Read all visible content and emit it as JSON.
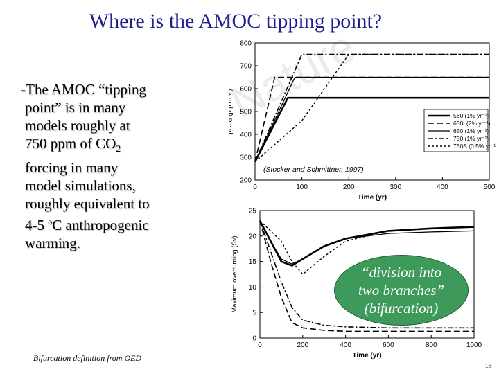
{
  "slide": {
    "title": "Where is the AMOC tipping point?",
    "bullet_lines": [
      "-The AMOC “tipping",
      "point” is in many",
      "models roughly at",
      "750 ppm of CO",
      "forcing in many",
      "model simulations,",
      "roughly equivalent to",
      "4-5",
      "C anthropogenic",
      "warming."
    ],
    "co2_subscript": "2",
    "degree_symbol": "o",
    "footnote": "Bifurcation definition from OED",
    "slide_number": "18",
    "callout_lines": [
      "“division into",
      "two branches”",
      "(bifurcation)"
    ],
    "callout_color": "#3e9a5a"
  },
  "chart_data": [
    {
      "type": "line",
      "title": "",
      "xlabel": "Time (yr)",
      "ylabel": "pCO₂ (p.p.m.v.)",
      "xlim": [
        0,
        500
      ],
      "ylim": [
        200,
        800
      ],
      "x_ticks": [
        0,
        100,
        200,
        300,
        400,
        500
      ],
      "y_ticks": [
        200,
        300,
        400,
        500,
        600,
        700,
        800
      ],
      "annotation": "(Stocker and Schmittner, 1997)",
      "watermark": "Nature",
      "legend_position": "center-right",
      "series": [
        {
          "name": "560  (1% yr⁻¹)",
          "style": "solid-thick",
          "x": [
            0,
            70,
            500
          ],
          "y": [
            280,
            560,
            560
          ]
        },
        {
          "name": "650I  (2% yr⁻¹)",
          "style": "long-dash",
          "x": [
            0,
            42,
            500
          ],
          "y": [
            280,
            650,
            650
          ]
        },
        {
          "name": "650  (1% yr⁻¹)",
          "style": "solid",
          "x": [
            0,
            85,
            500
          ],
          "y": [
            280,
            650,
            650
          ]
        },
        {
          "name": "750  (1% yr⁻¹)",
          "style": "dash-dot",
          "x": [
            0,
            100,
            500
          ],
          "y": [
            280,
            750,
            750
          ]
        },
        {
          "name": "750S  (0.5% yr⁻¹)",
          "style": "short-dash",
          "x": [
            0,
            100,
            200,
            500
          ],
          "y": [
            280,
            460,
            750,
            750
          ]
        }
      ]
    },
    {
      "type": "line",
      "title": "",
      "xlabel": "Time (yr)",
      "ylabel": "Maximum overturning (Sv)",
      "xlim": [
        0,
        1000
      ],
      "ylim": [
        0,
        25
      ],
      "x_ticks": [
        0,
        200,
        400,
        600,
        800,
        1000
      ],
      "y_ticks": [
        0,
        5,
        10,
        15,
        20,
        25
      ],
      "legend_position": "none",
      "series": [
        {
          "style": "solid-thick",
          "x": [
            0,
            50,
            100,
            150,
            200,
            300,
            400,
            600,
            800,
            1000
          ],
          "y": [
            23,
            19,
            15,
            14.2,
            15.5,
            18,
            19.5,
            21,
            21.5,
            21.8
          ]
        },
        {
          "style": "solid",
          "x": [
            0,
            50,
            100,
            150,
            200,
            300,
            400,
            600,
            800,
            1000
          ],
          "y": [
            23,
            19,
            15.5,
            14.5,
            15.5,
            18,
            19.5,
            20.5,
            20.8,
            21
          ]
        },
        {
          "style": "long-dash",
          "x": [
            0,
            50,
            100,
            150,
            200,
            300,
            400,
            600,
            800,
            1000
          ],
          "y": [
            23,
            15,
            8,
            3,
            2,
            1.5,
            1.3,
            1.3,
            1.3,
            1.3
          ]
        },
        {
          "style": "dash-dot",
          "x": [
            0,
            50,
            100,
            150,
            200,
            300,
            400,
            600,
            800,
            1000
          ],
          "y": [
            23,
            17,
            11,
            6,
            3.5,
            2.5,
            2.2,
            2,
            2,
            2
          ]
        },
        {
          "style": "short-dash",
          "x": [
            0,
            50,
            100,
            150,
            200,
            300,
            400,
            600,
            800,
            1000
          ],
          "y": [
            23,
            21,
            19,
            15,
            12.5,
            16,
            19,
            21,
            21.5,
            21.8
          ]
        }
      ]
    }
  ]
}
